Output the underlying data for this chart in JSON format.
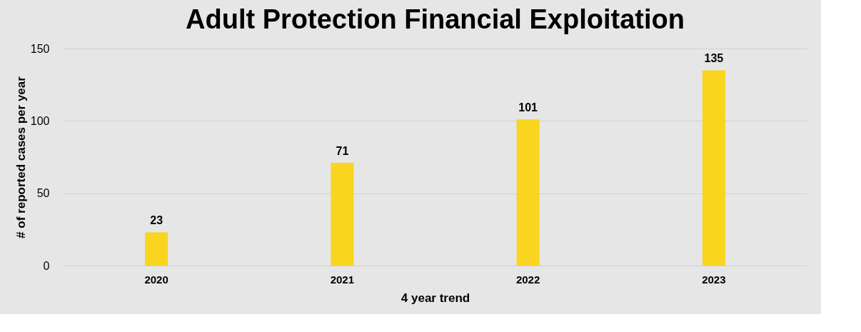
{
  "chart_data": {
    "type": "bar",
    "title": "Adult Protection Financial Exploitation",
    "xlabel": "4 year trend",
    "ylabel": "# of reported cases per year",
    "categories": [
      "2020",
      "2021",
      "2022",
      "2023"
    ],
    "values": [
      23,
      71,
      101,
      135
    ],
    "color": "#f9d51f",
    "ylim": [
      0,
      150
    ],
    "yticks": [
      0,
      50,
      100,
      150
    ],
    "grid": "y",
    "data_labels": true
  }
}
